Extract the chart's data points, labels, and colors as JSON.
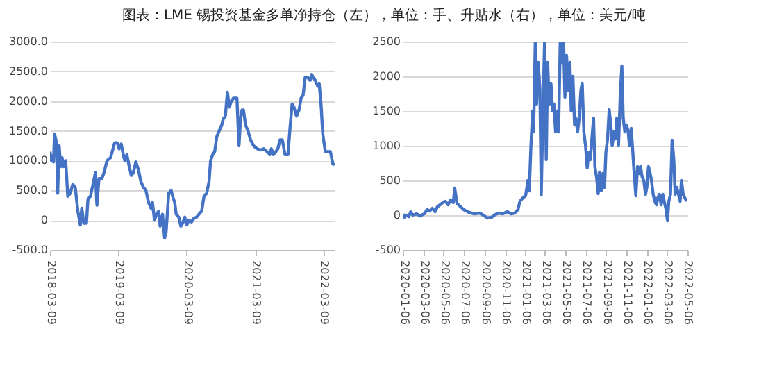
{
  "chart_data": [
    {
      "type": "line",
      "title": "图表：LME 锡投资基金多单净持仓（左），单位：手、升贴水（右），单位：美元/吨",
      "x": [
        "2018-03-09",
        "2018-03-17",
        "2018-03-28",
        "2018-04-02",
        "2018-04-13",
        "2018-04-19",
        "2018-04-27",
        "2018-05-05",
        "2018-05-13",
        "2018-05-21",
        "2018-06-01",
        "2018-06-12",
        "2018-06-25",
        "2018-07-09",
        "2018-07-22",
        "2018-08-05",
        "2018-08-18",
        "2018-08-26",
        "2018-09-06",
        "2018-09-20",
        "2018-09-28",
        "2018-10-11",
        "2018-10-25",
        "2018-11-07",
        "2018-11-15",
        "2018-11-26",
        "2018-12-12",
        "2018-12-23",
        "2019-01-08",
        "2019-01-27",
        "2019-02-18",
        "2019-03-04",
        "2019-03-14",
        "2019-03-25",
        "2019-04-05",
        "2019-04-13",
        "2019-04-24",
        "2019-05-07",
        "2019-05-18",
        "2019-05-29",
        "2019-06-11",
        "2019-06-25",
        "2019-07-08",
        "2019-07-22",
        "2019-08-04",
        "2019-08-18",
        "2019-08-31",
        "2019-09-08",
        "2019-09-19",
        "2019-09-30",
        "2019-10-11",
        "2019-10-19",
        "2019-11-01",
        "2019-11-12",
        "2019-11-20",
        "2019-12-04",
        "2019-12-17",
        "2019-12-25",
        "2020-01-05",
        "2020-01-13",
        "2020-01-27",
        "2020-02-07",
        "2020-02-17",
        "2020-02-28",
        "2020-03-10",
        "2020-03-21",
        "2020-04-04",
        "2020-04-17",
        "2020-05-01",
        "2020-05-14",
        "2020-05-28",
        "2020-06-10",
        "2020-06-24",
        "2020-07-07",
        "2020-07-15",
        "2020-07-26",
        "2020-08-06",
        "2020-08-17",
        "2020-08-30",
        "2020-09-13",
        "2020-09-21",
        "2020-10-02",
        "2020-10-13",
        "2020-10-23",
        "2020-11-03",
        "2020-11-14",
        "2020-12-03",
        "2020-12-14",
        "2020-12-22",
        "2020-12-30",
        "2021-01-07",
        "2021-01-18",
        "2021-01-31",
        "2021-02-14",
        "2021-03-02",
        "2021-03-21",
        "2021-04-09",
        "2021-04-25",
        "2021-05-14",
        "2021-05-28",
        "2021-06-05",
        "2021-06-16",
        "2021-06-29",
        "2021-07-10",
        "2021-07-21",
        "2021-08-03",
        "2021-08-17",
        "2021-09-02",
        "2021-09-13",
        "2021-09-24",
        "2021-10-04",
        "2021-10-18",
        "2021-10-31",
        "2021-11-11",
        "2021-11-22",
        "2021-12-03",
        "2021-12-16",
        "2021-12-30",
        "2022-01-07",
        "2022-01-15",
        "2022-01-26",
        "2022-02-08",
        "2022-02-16",
        "2022-02-27",
        "2022-03-07",
        "2022-03-21",
        "2022-04-03",
        "2022-04-17",
        "2022-04-30",
        "2022-05-08"
      ],
      "series": [
        {
          "color": "#4472c4",
          "values": [
            1150,
            1000,
            980,
            1450,
            1300,
            450,
            1250,
            900,
            1050,
            900,
            1000,
            400,
            450,
            600,
            550,
            150,
            -80,
            200,
            -50,
            -50,
            350,
            400,
            600,
            800,
            250,
            700,
            700,
            800,
            1000,
            1050,
            1300,
            1300,
            1200,
            1280,
            1100,
            1000,
            1100,
            900,
            750,
            800,
            980,
            850,
            650,
            550,
            500,
            300,
            200,
            300,
            0,
            100,
            150,
            -100,
            100,
            -300,
            -200,
            450,
            500,
            400,
            300,
            100,
            50,
            -100,
            -50,
            50,
            -80,
            0,
            -30,
            30,
            50,
            100,
            150,
            400,
            450,
            650,
            1000,
            1100,
            1150,
            1400,
            1500,
            1600,
            1700,
            1750,
            2150,
            1900,
            2000,
            2050,
            2050,
            1250,
            1700,
            1850,
            1850,
            1600,
            1500,
            1350,
            1250,
            1200,
            1180,
            1200,
            1150,
            1100,
            1200,
            1100,
            1150,
            1200,
            1350,
            1350,
            1100,
            1100,
            1550,
            1950,
            1900,
            1750,
            1850,
            2050,
            2100,
            2400,
            2400,
            2350,
            2450,
            2400,
            2350,
            2250,
            2300,
            1900,
            1450,
            1150,
            1150,
            1150,
            950,
            920
          ]
        }
      ],
      "xlim": [
        "2018-03-09",
        "2022-05-10"
      ],
      "xticks": [
        "2018-03-09",
        "2019-03-09",
        "2020-03-09",
        "2021-03-09",
        "2022-03-09"
      ],
      "ylim": [
        -500,
        3000
      ],
      "yticks": [
        {
          "value": -500,
          "label": "-500.0"
        },
        0,
        {
          "value": 500,
          "label": "500.0"
        },
        {
          "value": 1000,
          "label": "1000.0"
        },
        {
          "value": 1500,
          "label": "1500.0"
        },
        {
          "value": 2000,
          "label": "2000.0"
        },
        {
          "value": 2500,
          "label": "2500.0"
        },
        {
          "value": 3000,
          "label": "3000.0"
        }
      ],
      "grid": "y"
    },
    {
      "type": "line",
      "x": [
        "2020-01-06",
        "2020-01-09",
        "2020-01-15",
        "2020-01-22",
        "2020-01-28",
        "2020-02-03",
        "2020-02-14",
        "2020-02-25",
        "2020-03-09",
        "2020-03-17",
        "2020-03-25",
        "2020-04-02",
        "2020-04-10",
        "2020-04-17",
        "2020-04-25",
        "2020-05-03",
        "2020-05-11",
        "2020-05-19",
        "2020-05-27",
        "2020-06-04",
        "2020-06-08",
        "2020-06-15",
        "2020-06-24",
        "2020-07-05",
        "2020-07-21",
        "2020-08-06",
        "2020-08-22",
        "2020-09-02",
        "2020-09-14",
        "2020-09-27",
        "2020-10-08",
        "2020-10-19",
        "2020-10-31",
        "2020-11-13",
        "2020-11-24",
        "2020-12-05",
        "2020-12-15",
        "2020-12-21",
        "2020-12-30",
        "2021-01-07",
        "2021-01-14",
        "2021-01-18",
        "2021-01-23",
        "2021-01-28",
        "2021-01-31",
        "2021-02-05",
        "2021-02-09",
        "2021-02-14",
        "2021-02-19",
        "2021-02-23",
        "2021-02-28",
        "2021-03-05",
        "2021-03-10",
        "2021-03-14",
        "2021-03-19",
        "2021-03-24",
        "2021-03-29",
        "2021-04-02",
        "2021-04-07",
        "2021-04-12",
        "2021-04-16",
        "2021-04-21",
        "2021-04-26",
        "2021-05-01",
        "2021-05-05",
        "2021-05-10",
        "2021-05-15",
        "2021-05-20",
        "2021-05-24",
        "2021-05-29",
        "2021-06-03",
        "2021-06-07",
        "2021-06-12",
        "2021-06-17",
        "2021-06-22",
        "2021-06-26",
        "2021-07-01",
        "2021-07-06",
        "2021-07-11",
        "2021-07-15",
        "2021-07-20",
        "2021-07-25",
        "2021-07-30",
        "2021-08-03",
        "2021-08-08",
        "2021-08-13",
        "2021-08-17",
        "2021-08-22",
        "2021-08-27",
        "2021-09-01",
        "2021-09-05",
        "2021-09-10",
        "2021-09-15",
        "2021-09-20",
        "2021-09-24",
        "2021-09-29",
        "2021-10-04",
        "2021-10-08",
        "2021-10-13",
        "2021-10-18",
        "2021-10-23",
        "2021-10-27",
        "2021-11-01",
        "2021-11-06",
        "2021-11-11",
        "2021-11-15",
        "2021-11-20",
        "2021-11-25",
        "2021-11-29",
        "2021-12-04",
        "2021-12-09",
        "2021-12-14",
        "2021-12-18",
        "2021-12-23",
        "2021-12-28",
        "2022-01-02",
        "2022-01-06",
        "2022-01-11",
        "2022-01-16",
        "2022-01-20",
        "2022-01-25",
        "2022-01-30",
        "2022-02-04",
        "2022-02-08",
        "2022-02-13",
        "2022-02-18",
        "2022-02-23",
        "2022-02-27",
        "2022-03-04",
        "2022-03-09",
        "2022-03-13",
        "2022-03-18",
        "2022-03-23",
        "2022-03-28",
        "2022-04-01",
        "2022-04-06",
        "2022-04-11",
        "2022-04-16",
        "2022-04-20",
        "2022-04-25",
        "2022-04-30",
        "2022-05-06"
      ],
      "series": [
        {
          "color": "#4472c4",
          "values": [
            20,
            -30,
            0,
            -20,
            50,
            0,
            20,
            -10,
            20,
            80,
            60,
            100,
            50,
            120,
            150,
            180,
            200,
            150,
            220,
            180,
            390,
            170,
            130,
            80,
            40,
            20,
            30,
            0,
            -40,
            -30,
            10,
            30,
            20,
            50,
            20,
            30,
            80,
            200,
            250,
            280,
            500,
            350,
            1000,
            1500,
            1200,
            2500,
            1600,
            2200,
            1800,
            290,
            1500,
            2500,
            800,
            2200,
            1600,
            1900,
            1500,
            1600,
            1200,
            1500,
            1200,
            2500,
            2200,
            2500,
            1700,
            2300,
            1800,
            2200,
            1500,
            2000,
            1300,
            1400,
            1200,
            1400,
            1800,
            1900,
            1200,
            1000,
            680,
            900,
            800,
            1100,
            1400,
            700,
            550,
            310,
            620,
            350,
            600,
            400,
            900,
            1100,
            1520,
            1300,
            1000,
            1200,
            1100,
            1400,
            1000,
            1700,
            2150,
            1400,
            1200,
            1300,
            1200,
            1000,
            1250,
            900,
            600,
            280,
            700,
            600,
            700,
            550,
            500,
            300,
            400,
            700,
            600,
            500,
            300,
            200,
            150,
            250,
            300,
            150,
            300,
            200,
            100,
            -80,
            200,
            300,
            1080,
            800,
            300,
            400,
            300,
            200,
            500,
            300,
            250,
            200
          ]
        }
      ],
      "xlim": [
        "2020-01-04",
        "2022-05-08"
      ],
      "xticks": [
        "2020-01-06",
        "2020-03-06",
        "2020-05-06",
        "2020-07-06",
        "2020-09-06",
        "2020-11-06",
        "2021-01-06",
        "2021-03-06",
        "2021-05-06",
        "2021-07-06",
        "2021-09-06",
        "2021-11-06",
        "2022-01-06",
        "2022-03-06",
        "2022-05-06"
      ],
      "ylim": [
        -500,
        2500
      ],
      "yticks": [
        -500,
        0,
        500,
        1000,
        1500,
        2000,
        2500
      ],
      "grid": "y"
    }
  ]
}
